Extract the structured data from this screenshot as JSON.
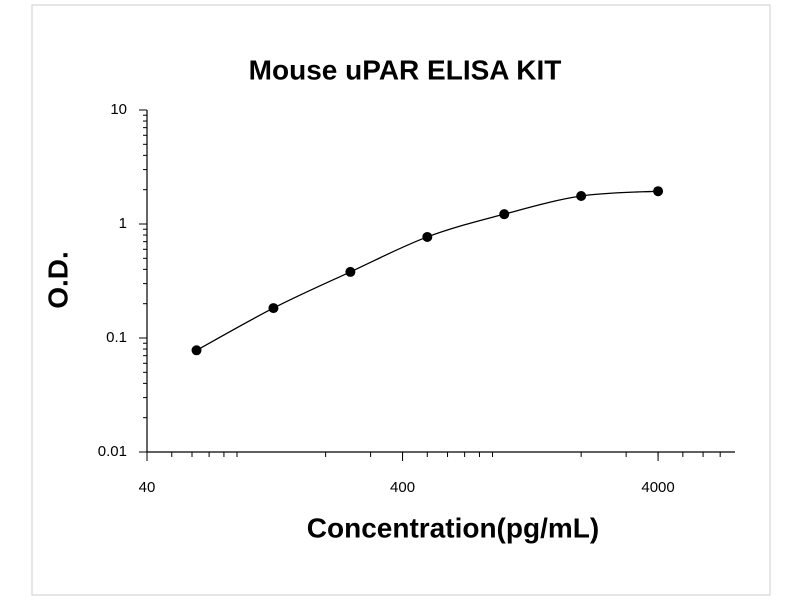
{
  "chart_data": {
    "type": "line",
    "title": "Mouse uPAR ELISA KIT",
    "xlabel": "Concentration(pg/mL)",
    "ylabel": "O.D.",
    "x": [
      62.5,
      125,
      250,
      500,
      1000,
      2000,
      4000
    ],
    "values": [
      0.078,
      0.183,
      0.38,
      0.77,
      1.22,
      1.76,
      1.94
    ],
    "color": "#000000",
    "xscale": "log",
    "yscale": "log",
    "xlim": [
      40,
      8000
    ],
    "ylim": [
      0.01,
      10
    ],
    "xticks": [
      40,
      400,
      4000
    ],
    "yticks": [
      0.01,
      0.1,
      1,
      10
    ],
    "grid": false
  }
}
